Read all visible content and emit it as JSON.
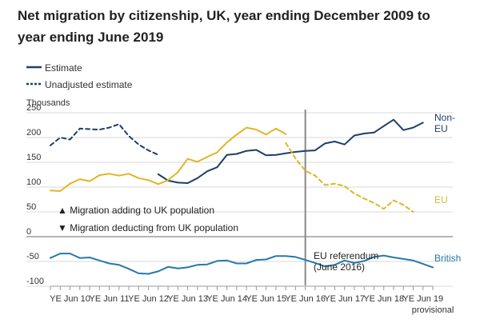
{
  "chart_data": {
    "type": "line",
    "title_line1": "Net migration by citizenship, UK, year ending December 2009 to",
    "title_line2": "year ending June 2019",
    "ylabel": "Thousands",
    "ylim": [
      -100,
      250
    ],
    "yticks": [
      250,
      200,
      150,
      100,
      50,
      0,
      -50,
      -100
    ],
    "xlabels": [
      "YE Jun 10",
      "YE Jun 11",
      "YE Jun 12",
      "YE Jun 13",
      "YE Jun 14",
      "YE Jun 15",
      "YE Jun 16",
      "YE Jun 17",
      "YE Jun 18",
      "YE Jun 19"
    ],
    "xlabel_last_extra": "provisional",
    "legend": {
      "estimate": "Estimate",
      "unadjusted": "Unadjusted estimate"
    },
    "annotations": {
      "adding": "▲ Migration adding to UK population",
      "deducting": "▼ Migration deducting from UK population",
      "referendum_line1": "EU referendum",
      "referendum_line2": "(June 2016)"
    },
    "referendum_index": 26,
    "colors": {
      "noneu": "#1e3f66",
      "eu": "#e0b625",
      "british": "#2679a9",
      "axis": "#999999",
      "grid": "#d9d9d9",
      "referendum": "#888888"
    },
    "series": [
      {
        "name": "Non-EU estimate",
        "label_line1": "Non-",
        "label_line2": "EU",
        "color_key": "noneu",
        "dashed": false,
        "start_index": 11,
        "values": [
          126,
          113,
          109,
          108,
          118,
          132,
          140,
          165,
          167,
          173,
          175,
          164,
          165,
          168,
          171,
          173,
          174,
          188,
          192,
          186,
          204,
          208,
          210,
          223,
          236,
          215,
          220,
          230
        ]
      },
      {
        "name": "Non-EU unadjusted estimate",
        "color_key": "noneu",
        "dashed": true,
        "start_index": 0,
        "values": [
          184,
          200,
          196,
          218,
          217,
          216,
          220,
          227,
          203,
          186,
          174,
          165
        ]
      },
      {
        "name": "EU estimate",
        "label_line1": "",
        "label_line2": "EU",
        "color_key": "eu",
        "dashed": false,
        "start_index": 0,
        "values": [
          93,
          92,
          107,
          116,
          112,
          124,
          127,
          123,
          127,
          118,
          114,
          106,
          114,
          130,
          157,
          151,
          161,
          170,
          190,
          206,
          220,
          216,
          206,
          218,
          207
        ]
      },
      {
        "name": "EU provisional",
        "color_key": "eu",
        "dashed": true,
        "start_index": 24,
        "values": [
          189,
          158,
          133,
          123,
          104,
          107,
          102,
          87,
          77,
          68,
          56,
          73,
          64,
          50
        ]
      },
      {
        "name": "British estimate",
        "label_line1": "",
        "label_line2": "British",
        "color_key": "british",
        "dashed": false,
        "start_index": 0,
        "values": [
          -43,
          -34,
          -34,
          -43,
          -42,
          -48,
          -54,
          -57,
          -65,
          -74,
          -75,
          -70,
          -61,
          -64,
          -62,
          -57,
          -56,
          -49,
          -48,
          -54,
          -54,
          -47,
          -46,
          -39,
          -39,
          -41,
          -47,
          -53,
          -60,
          -57,
          -48,
          -53,
          -49,
          -41,
          -38,
          -42,
          -45,
          -48,
          -55,
          -62
        ]
      }
    ]
  }
}
